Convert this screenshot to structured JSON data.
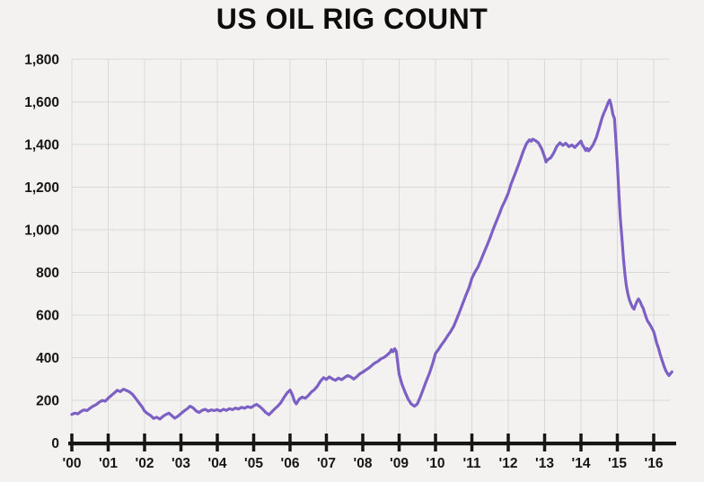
{
  "chart_data": {
    "type": "line",
    "title": "US OIL RIG COUNT",
    "xlabel": "",
    "ylabel": "",
    "legend": "none",
    "grid": true,
    "colors": {
      "line": "#7c60c4",
      "background": "#f4f2f0",
      "gridline": "#d9d9d9",
      "axis": "#161616",
      "text": "#161616",
      "title_text": "#0d0d0d"
    },
    "x_axis": {
      "min_year": 2000,
      "max_year": 2016.55,
      "tick_years": [
        2000,
        2001,
        2002,
        2003,
        2004,
        2005,
        2006,
        2007,
        2008,
        2009,
        2010,
        2011,
        2012,
        2013,
        2014,
        2015,
        2016
      ],
      "tick_labels": [
        "'00",
        "'01",
        "'02",
        "'03",
        "'04",
        "'05",
        "'06",
        "'07",
        "'08",
        "'09",
        "'10",
        "'11",
        "'12",
        "'13",
        "'14",
        "'15",
        "'16"
      ]
    },
    "y_axis": {
      "min": 0,
      "max": 1800,
      "tick_interval": 200,
      "tick_values": [
        0,
        200,
        400,
        600,
        800,
        1000,
        1200,
        1400,
        1600,
        1800
      ],
      "tick_labels": [
        "0",
        "200",
        "400",
        "600",
        "800",
        "1,000",
        "1,200",
        "1,400",
        "1,600",
        "1,800"
      ]
    },
    "series": [
      {
        "name": "US OIL RIG COUNT",
        "points": [
          [
            2000.0,
            134
          ],
          [
            2000.08,
            140
          ],
          [
            2000.17,
            137
          ],
          [
            2000.25,
            148
          ],
          [
            2000.33,
            155
          ],
          [
            2000.42,
            152
          ],
          [
            2000.5,
            163
          ],
          [
            2000.58,
            172
          ],
          [
            2000.67,
            180
          ],
          [
            2000.75,
            191
          ],
          [
            2000.83,
            199
          ],
          [
            2000.92,
            196
          ],
          [
            2001.0,
            210
          ],
          [
            2001.08,
            222
          ],
          [
            2001.17,
            235
          ],
          [
            2001.25,
            247
          ],
          [
            2001.33,
            241
          ],
          [
            2001.42,
            252
          ],
          [
            2001.5,
            246
          ],
          [
            2001.58,
            240
          ],
          [
            2001.67,
            228
          ],
          [
            2001.75,
            210
          ],
          [
            2001.83,
            192
          ],
          [
            2001.92,
            172
          ],
          [
            2002.0,
            150
          ],
          [
            2002.08,
            138
          ],
          [
            2002.17,
            128
          ],
          [
            2002.25,
            115
          ],
          [
            2002.33,
            121
          ],
          [
            2002.42,
            112
          ],
          [
            2002.5,
            124
          ],
          [
            2002.58,
            133
          ],
          [
            2002.67,
            140
          ],
          [
            2002.75,
            128
          ],
          [
            2002.83,
            116
          ],
          [
            2002.92,
            126
          ],
          [
            2003.0,
            138
          ],
          [
            2003.08,
            149
          ],
          [
            2003.17,
            160
          ],
          [
            2003.25,
            172
          ],
          [
            2003.33,
            165
          ],
          [
            2003.42,
            150
          ],
          [
            2003.5,
            143
          ],
          [
            2003.58,
            153
          ],
          [
            2003.67,
            158
          ],
          [
            2003.75,
            149
          ],
          [
            2003.83,
            155
          ],
          [
            2003.92,
            152
          ],
          [
            2004.0,
            156
          ],
          [
            2004.08,
            150
          ],
          [
            2004.17,
            158
          ],
          [
            2004.25,
            153
          ],
          [
            2004.33,
            161
          ],
          [
            2004.42,
            156
          ],
          [
            2004.5,
            164
          ],
          [
            2004.58,
            159
          ],
          [
            2004.67,
            167
          ],
          [
            2004.75,
            163
          ],
          [
            2004.83,
            170
          ],
          [
            2004.92,
            166
          ],
          [
            2005.0,
            174
          ],
          [
            2005.08,
            181
          ],
          [
            2005.17,
            170
          ],
          [
            2005.25,
            158
          ],
          [
            2005.33,
            143
          ],
          [
            2005.42,
            132
          ],
          [
            2005.5,
            146
          ],
          [
            2005.58,
            160
          ],
          [
            2005.67,
            174
          ],
          [
            2005.75,
            190
          ],
          [
            2005.83,
            212
          ],
          [
            2005.92,
            235
          ],
          [
            2006.0,
            248
          ],
          [
            2006.06,
            228
          ],
          [
            2006.12,
            196
          ],
          [
            2006.17,
            183
          ],
          [
            2006.25,
            205
          ],
          [
            2006.33,
            215
          ],
          [
            2006.42,
            210
          ],
          [
            2006.5,
            222
          ],
          [
            2006.58,
            238
          ],
          [
            2006.67,
            250
          ],
          [
            2006.75,
            266
          ],
          [
            2006.83,
            288
          ],
          [
            2006.92,
            306
          ],
          [
            2007.0,
            298
          ],
          [
            2007.08,
            310
          ],
          [
            2007.17,
            300
          ],
          [
            2007.25,
            294
          ],
          [
            2007.33,
            304
          ],
          [
            2007.42,
            297
          ],
          [
            2007.5,
            307
          ],
          [
            2007.58,
            316
          ],
          [
            2007.67,
            310
          ],
          [
            2007.75,
            300
          ],
          [
            2007.83,
            310
          ],
          [
            2007.92,
            325
          ],
          [
            2008.0,
            332
          ],
          [
            2008.08,
            342
          ],
          [
            2008.17,
            352
          ],
          [
            2008.25,
            364
          ],
          [
            2008.33,
            375
          ],
          [
            2008.42,
            383
          ],
          [
            2008.5,
            395
          ],
          [
            2008.58,
            401
          ],
          [
            2008.67,
            412
          ],
          [
            2008.75,
            425
          ],
          [
            2008.79,
            438
          ],
          [
            2008.83,
            428
          ],
          [
            2008.88,
            442
          ],
          [
            2008.92,
            430
          ],
          [
            2009.0,
            322
          ],
          [
            2009.08,
            275
          ],
          [
            2009.17,
            235
          ],
          [
            2009.25,
            205
          ],
          [
            2009.33,
            183
          ],
          [
            2009.42,
            172
          ],
          [
            2009.5,
            183
          ],
          [
            2009.58,
            215
          ],
          [
            2009.67,
            255
          ],
          [
            2009.75,
            292
          ],
          [
            2009.83,
            325
          ],
          [
            2009.92,
            372
          ],
          [
            2010.0,
            420
          ],
          [
            2010.08,
            438
          ],
          [
            2010.17,
            462
          ],
          [
            2010.25,
            480
          ],
          [
            2010.33,
            502
          ],
          [
            2010.42,
            524
          ],
          [
            2010.5,
            548
          ],
          [
            2010.58,
            580
          ],
          [
            2010.67,
            618
          ],
          [
            2010.75,
            655
          ],
          [
            2010.83,
            690
          ],
          [
            2010.92,
            728
          ],
          [
            2011.0,
            772
          ],
          [
            2011.08,
            800
          ],
          [
            2011.17,
            826
          ],
          [
            2011.25,
            858
          ],
          [
            2011.33,
            892
          ],
          [
            2011.42,
            928
          ],
          [
            2011.5,
            963
          ],
          [
            2011.58,
            1000
          ],
          [
            2011.67,
            1038
          ],
          [
            2011.75,
            1072
          ],
          [
            2011.83,
            1108
          ],
          [
            2011.92,
            1140
          ],
          [
            2012.0,
            1172
          ],
          [
            2012.08,
            1215
          ],
          [
            2012.17,
            1255
          ],
          [
            2012.25,
            1290
          ],
          [
            2012.33,
            1328
          ],
          [
            2012.42,
            1372
          ],
          [
            2012.5,
            1404
          ],
          [
            2012.58,
            1422
          ],
          [
            2012.63,
            1415
          ],
          [
            2012.67,
            1425
          ],
          [
            2012.75,
            1418
          ],
          [
            2012.83,
            1408
          ],
          [
            2012.92,
            1380
          ],
          [
            2013.0,
            1342
          ],
          [
            2013.04,
            1318
          ],
          [
            2013.08,
            1328
          ],
          [
            2013.17,
            1338
          ],
          [
            2013.25,
            1360
          ],
          [
            2013.33,
            1390
          ],
          [
            2013.42,
            1408
          ],
          [
            2013.5,
            1396
          ],
          [
            2013.58,
            1406
          ],
          [
            2013.67,
            1390
          ],
          [
            2013.75,
            1398
          ],
          [
            2013.83,
            1386
          ],
          [
            2013.92,
            1402
          ],
          [
            2014.0,
            1416
          ],
          [
            2014.04,
            1398
          ],
          [
            2014.08,
            1388
          ],
          [
            2014.13,
            1372
          ],
          [
            2014.17,
            1382
          ],
          [
            2014.21,
            1370
          ],
          [
            2014.25,
            1378
          ],
          [
            2014.33,
            1398
          ],
          [
            2014.42,
            1432
          ],
          [
            2014.5,
            1478
          ],
          [
            2014.58,
            1525
          ],
          [
            2014.63,
            1548
          ],
          [
            2014.67,
            1562
          ],
          [
            2014.71,
            1580
          ],
          [
            2014.75,
            1598
          ],
          [
            2014.79,
            1609
          ],
          [
            2014.83,
            1585
          ],
          [
            2014.88,
            1540
          ],
          [
            2014.92,
            1522
          ],
          [
            2015.0,
            1310
          ],
          [
            2015.04,
            1180
          ],
          [
            2015.08,
            1060
          ],
          [
            2015.13,
            950
          ],
          [
            2015.17,
            860
          ],
          [
            2015.21,
            790
          ],
          [
            2015.25,
            735
          ],
          [
            2015.29,
            700
          ],
          [
            2015.33,
            672
          ],
          [
            2015.38,
            650
          ],
          [
            2015.42,
            635
          ],
          [
            2015.46,
            628
          ],
          [
            2015.5,
            648
          ],
          [
            2015.54,
            664
          ],
          [
            2015.58,
            676
          ],
          [
            2015.63,
            662
          ],
          [
            2015.67,
            645
          ],
          [
            2015.71,
            632
          ],
          [
            2015.75,
            610
          ],
          [
            2015.79,
            590
          ],
          [
            2015.83,
            572
          ],
          [
            2015.88,
            560
          ],
          [
            2015.92,
            548
          ],
          [
            2016.0,
            522
          ],
          [
            2016.04,
            498
          ],
          [
            2016.08,
            470
          ],
          [
            2016.13,
            445
          ],
          [
            2016.17,
            420
          ],
          [
            2016.21,
            398
          ],
          [
            2016.25,
            378
          ],
          [
            2016.29,
            358
          ],
          [
            2016.33,
            340
          ],
          [
            2016.38,
            325
          ],
          [
            2016.42,
            316
          ],
          [
            2016.46,
            325
          ],
          [
            2016.5,
            334
          ]
        ]
      }
    ]
  }
}
